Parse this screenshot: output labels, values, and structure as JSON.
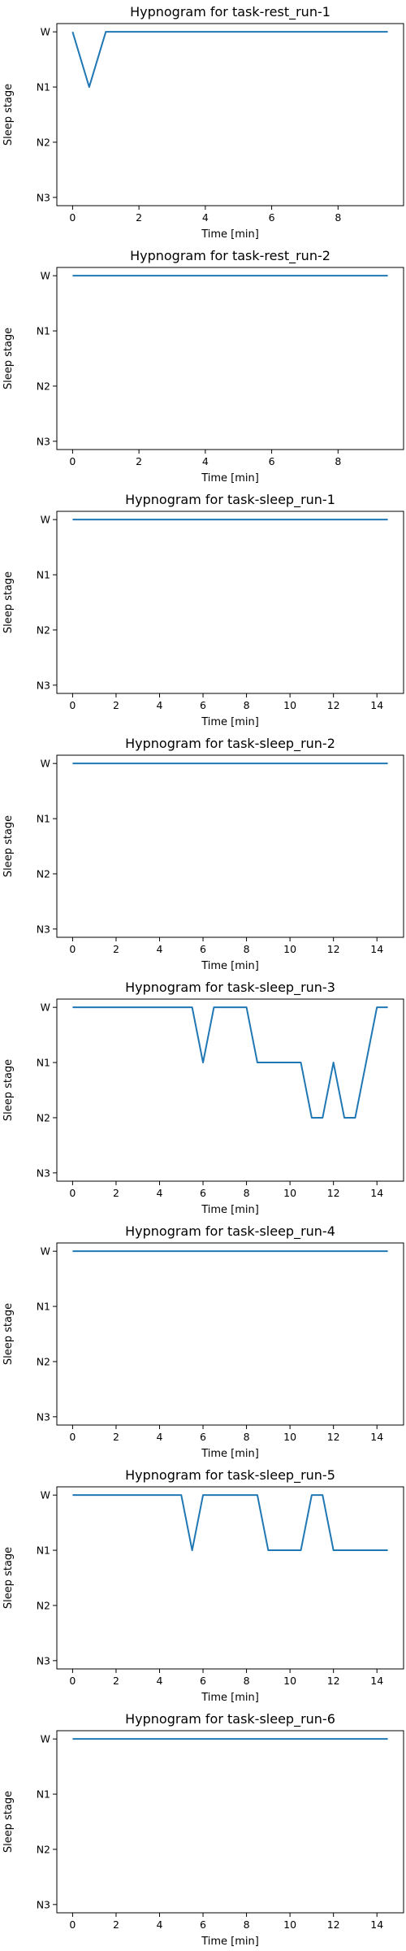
{
  "figure": {
    "line_color": "#1f77b4",
    "axis_color": "#000000",
    "background": "#ffffff"
  },
  "chart_data": [
    {
      "type": "line",
      "title": "Hypnogram for task-rest_run-1",
      "xlabel": "Time [min]",
      "ylabel": "Sleep stage",
      "xlim": [
        -0.475,
        9.975
      ],
      "xticks": [
        0,
        2,
        4,
        6,
        8
      ],
      "yticks": [
        "W",
        "N1",
        "N2",
        "N3"
      ],
      "grid": false,
      "x": [
        0,
        0.5,
        1,
        9.5
      ],
      "y": [
        "W",
        "N1",
        "W",
        "W"
      ]
    },
    {
      "type": "line",
      "title": "Hypnogram for task-rest_run-2",
      "xlabel": "Time [min]",
      "ylabel": "Sleep stage",
      "xlim": [
        -0.475,
        9.975
      ],
      "xticks": [
        0,
        2,
        4,
        6,
        8
      ],
      "yticks": [
        "W",
        "N1",
        "N2",
        "N3"
      ],
      "grid": false,
      "x": [
        0,
        9.5
      ],
      "y": [
        "W",
        "W"
      ]
    },
    {
      "type": "line",
      "title": "Hypnogram for task-sleep_run-1",
      "xlabel": "Time [min]",
      "ylabel": "Sleep stage",
      "xlim": [
        -0.725,
        15.225
      ],
      "xticks": [
        0,
        2,
        4,
        6,
        8,
        10,
        12,
        14
      ],
      "yticks": [
        "W",
        "N1",
        "N2",
        "N3"
      ],
      "grid": false,
      "x": [
        0,
        14.5
      ],
      "y": [
        "W",
        "W"
      ]
    },
    {
      "type": "line",
      "title": "Hypnogram for task-sleep_run-2",
      "xlabel": "Time [min]",
      "ylabel": "Sleep stage",
      "xlim": [
        -0.725,
        15.225
      ],
      "xticks": [
        0,
        2,
        4,
        6,
        8,
        10,
        12,
        14
      ],
      "yticks": [
        "W",
        "N1",
        "N2",
        "N3"
      ],
      "grid": false,
      "x": [
        0,
        14.5
      ],
      "y": [
        "W",
        "W"
      ]
    },
    {
      "type": "line",
      "title": "Hypnogram for task-sleep_run-3",
      "xlabel": "Time [min]",
      "ylabel": "Sleep stage",
      "xlim": [
        -0.725,
        15.225
      ],
      "xticks": [
        0,
        2,
        4,
        6,
        8,
        10,
        12,
        14
      ],
      "yticks": [
        "W",
        "N1",
        "N2",
        "N3"
      ],
      "grid": false,
      "x": [
        0,
        5.5,
        6,
        6.5,
        8,
        8.5,
        10.5,
        11,
        11.5,
        12,
        12.5,
        13,
        14,
        14.5
      ],
      "y": [
        "W",
        "W",
        "N1",
        "W",
        "W",
        "N1",
        "N1",
        "N2",
        "N2",
        "N1",
        "N2",
        "N2",
        "W",
        "W"
      ]
    },
    {
      "type": "line",
      "title": "Hypnogram for task-sleep_run-4",
      "xlabel": "Time [min]",
      "ylabel": "Sleep stage",
      "xlim": [
        -0.725,
        15.225
      ],
      "xticks": [
        0,
        2,
        4,
        6,
        8,
        10,
        12,
        14
      ],
      "yticks": [
        "W",
        "N1",
        "N2",
        "N3"
      ],
      "grid": false,
      "x": [
        0,
        14.5
      ],
      "y": [
        "W",
        "W"
      ]
    },
    {
      "type": "line",
      "title": "Hypnogram for task-sleep_run-5",
      "xlabel": "Time [min]",
      "ylabel": "Sleep stage",
      "xlim": [
        -0.725,
        15.225
      ],
      "xticks": [
        0,
        2,
        4,
        6,
        8,
        10,
        12,
        14
      ],
      "yticks": [
        "W",
        "N1",
        "N2",
        "N3"
      ],
      "grid": false,
      "x": [
        0,
        5,
        5.5,
        6,
        8.5,
        9,
        10.5,
        11,
        11.5,
        12,
        14.5
      ],
      "y": [
        "W",
        "W",
        "N1",
        "W",
        "W",
        "N1",
        "N1",
        "W",
        "W",
        "N1",
        "N1"
      ]
    },
    {
      "type": "line",
      "title": "Hypnogram for task-sleep_run-6",
      "xlabel": "Time [min]",
      "ylabel": "Sleep stage",
      "xlim": [
        -0.725,
        15.225
      ],
      "xticks": [
        0,
        2,
        4,
        6,
        8,
        10,
        12,
        14
      ],
      "yticks": [
        "W",
        "N1",
        "N2",
        "N3"
      ],
      "grid": false,
      "x": [
        0,
        14.5
      ],
      "y": [
        "W",
        "W"
      ]
    }
  ]
}
